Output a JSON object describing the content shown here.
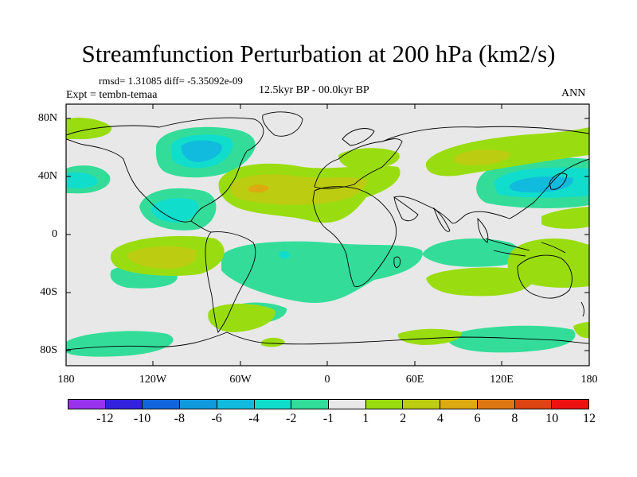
{
  "title": "Streamfunction Perturbation at 200 hPa (km2/s)",
  "stats": "rmsd= 1.31085 diff= -5.35092e-09",
  "experiment": "Expt = tembn-temaa",
  "period": "12.5kyr BP - 00.0kyr BP",
  "season": "ANN",
  "axes": {
    "y_ticks": [
      "80N",
      "40N",
      "0",
      "40S",
      "80S"
    ],
    "x_ticks": [
      "180",
      "120W",
      "60W",
      "0",
      "60E",
      "120E",
      "180"
    ]
  },
  "colorbar": {
    "labels": [
      "-12",
      "-10",
      "-8",
      "-6",
      "-4",
      "-2",
      "-1",
      "1",
      "2",
      "4",
      "6",
      "8",
      "10",
      "12"
    ],
    "colors": [
      "#9933ee",
      "#3322dd",
      "#1166dd",
      "#1199dd",
      "#11bbdd",
      "#11ddcc",
      "#33dd99",
      "#e8e8e8",
      "#99dd11",
      "#bbcc11",
      "#ddaa11",
      "#dd7711",
      "#dd4411",
      "#ee1111"
    ]
  },
  "colors": {
    "background": "#e8e8e8",
    "neg1": "#33dd99",
    "neg2": "#11ddcc",
    "neg3": "#11bbdd",
    "neg4": "#1199dd",
    "pos1": "#99dd11",
    "pos2": "#bbcc11",
    "pos3": "#ddaa11",
    "coast": "#000000"
  }
}
